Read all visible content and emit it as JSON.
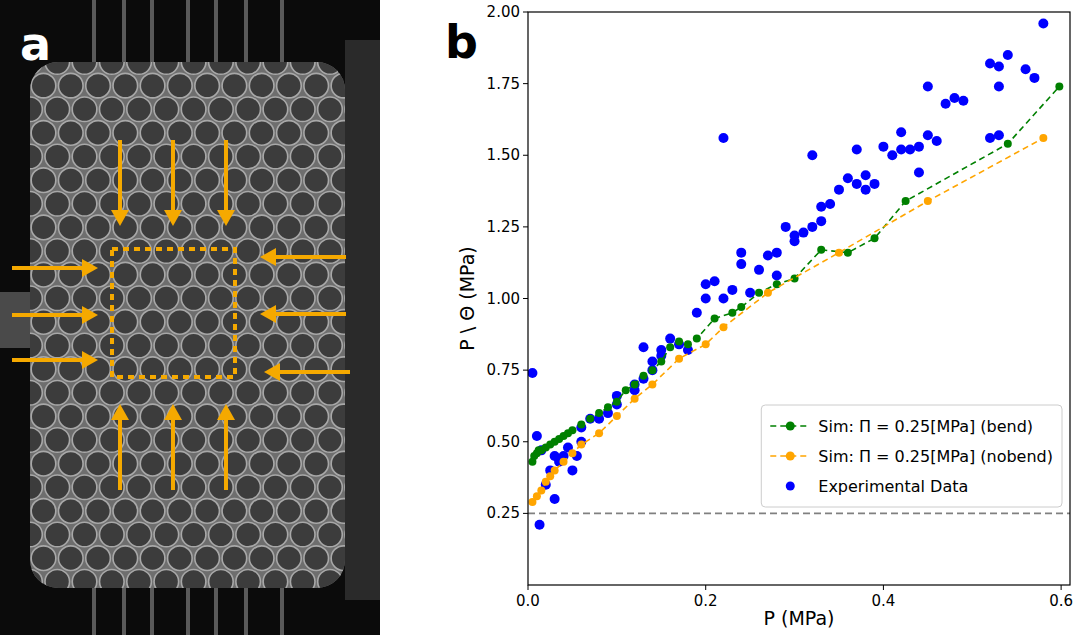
{
  "panel_labels": [
    "a",
    "b"
  ],
  "chart_data": {
    "type": "scatter",
    "x_label": "P (MPa)",
    "y_label": "P \\ Θ (MPa)",
    "xlim": [
      0,
      0.61
    ],
    "ylim": [
      0,
      2.0
    ],
    "xticks": [
      {
        "value": 0,
        "label": "0.0"
      },
      0.2,
      0.4,
      0.6
    ],
    "yticks": [
      0.25,
      {
        "value": 0.5,
        "label": "0.50"
      },
      0.75,
      {
        "value": 1.0,
        "label": "1.00"
      },
      1.25,
      {
        "value": 1.5,
        "label": "1.50"
      },
      1.75,
      {
        "value": 2.0,
        "label": "2.00"
      }
    ],
    "hline": 0.25,
    "grid": false,
    "legend": "lower right",
    "series": [
      {
        "name": "Sim: Π = 0.25[MPa] (bend)",
        "type": "line",
        "color": "#008000",
        "marker": "circle",
        "line_style": "dashed",
        "x": [
          0.005,
          0.007,
          0.01,
          0.012,
          0.015,
          0.02,
          0.025,
          0.03,
          0.035,
          0.04,
          0.045,
          0.05,
          0.06,
          0.07,
          0.08,
          0.09,
          0.1,
          0.11,
          0.12,
          0.13,
          0.14,
          0.15,
          0.16,
          0.17,
          0.18,
          0.19,
          0.21,
          0.23,
          0.24,
          0.26,
          0.28,
          0.3,
          0.33,
          0.36,
          0.39,
          0.425,
          0.54,
          0.598
        ],
        "values": [
          0.43,
          0.45,
          0.46,
          0.47,
          0.47,
          0.48,
          0.49,
          0.5,
          0.51,
          0.52,
          0.53,
          0.54,
          0.56,
          0.58,
          0.6,
          0.62,
          0.64,
          0.68,
          0.7,
          0.73,
          0.75,
          0.78,
          0.83,
          0.85,
          0.84,
          0.86,
          0.93,
          0.95,
          0.97,
          1.02,
          1.05,
          1.07,
          1.17,
          1.16,
          1.21,
          1.34,
          1.54,
          1.74
        ]
      },
      {
        "name": "Sim: Π = 0.25[MPa] (nobend)",
        "type": "line",
        "color": "#ffa500",
        "marker": "circle",
        "line_style": "dashed",
        "x": [
          0.005,
          0.01,
          0.015,
          0.02,
          0.025,
          0.03,
          0.04,
          0.05,
          0.06,
          0.08,
          0.1,
          0.12,
          0.14,
          0.17,
          0.2,
          0.22,
          0.27,
          0.35,
          0.45,
          0.58
        ],
        "values": [
          0.29,
          0.31,
          0.33,
          0.36,
          0.38,
          0.4,
          0.43,
          0.46,
          0.49,
          0.53,
          0.59,
          0.65,
          0.7,
          0.79,
          0.84,
          0.9,
          1.02,
          1.16,
          1.34,
          1.56
        ]
      },
      {
        "name": "Experimental Data",
        "type": "scatter",
        "color": "#0000ff",
        "marker": "circle",
        "line_style": "none",
        "x": [
          0.005,
          0.01,
          0.013,
          0.015,
          0.02,
          0.025,
          0.03,
          0.03,
          0.035,
          0.04,
          0.045,
          0.05,
          0.055,
          0.06,
          0.06,
          0.07,
          0.08,
          0.09,
          0.1,
          0.1,
          0.12,
          0.12,
          0.13,
          0.13,
          0.14,
          0.14,
          0.15,
          0.15,
          0.16,
          0.17,
          0.18,
          0.19,
          0.2,
          0.2,
          0.21,
          0.22,
          0.22,
          0.23,
          0.24,
          0.24,
          0.25,
          0.26,
          0.27,
          0.28,
          0.28,
          0.29,
          0.3,
          0.3,
          0.31,
          0.32,
          0.32,
          0.33,
          0.33,
          0.34,
          0.35,
          0.36,
          0.37,
          0.37,
          0.38,
          0.38,
          0.39,
          0.4,
          0.41,
          0.42,
          0.42,
          0.43,
          0.44,
          0.44,
          0.45,
          0.45,
          0.46,
          0.47,
          0.48,
          0.49,
          0.52,
          0.52,
          0.53,
          0.53,
          0.53,
          0.54,
          0.56,
          0.57,
          0.58
        ],
        "values": [
          0.74,
          0.52,
          0.21,
          0.47,
          0.35,
          0.4,
          0.3,
          0.45,
          0.43,
          0.45,
          0.48,
          0.4,
          0.45,
          0.5,
          0.55,
          0.58,
          0.58,
          0.6,
          0.63,
          0.66,
          0.7,
          0.68,
          0.83,
          0.72,
          0.75,
          0.78,
          0.8,
          0.82,
          0.86,
          0.84,
          0.82,
          0.95,
          1.0,
          1.05,
          1.06,
          1.56,
          1.0,
          1.03,
          1.12,
          1.16,
          1.02,
          1.1,
          1.15,
          1.16,
          1.08,
          1.25,
          1.2,
          1.22,
          1.23,
          1.5,
          1.25,
          1.32,
          1.27,
          1.33,
          1.38,
          1.42,
          1.52,
          1.4,
          1.38,
          1.43,
          1.4,
          1.53,
          1.5,
          1.58,
          1.52,
          1.52,
          1.53,
          1.44,
          1.74,
          1.57,
          1.55,
          1.68,
          1.7,
          1.69,
          1.56,
          1.82,
          1.81,
          1.57,
          1.74,
          1.85,
          1.8,
          1.77,
          1.96
        ]
      }
    ]
  }
}
